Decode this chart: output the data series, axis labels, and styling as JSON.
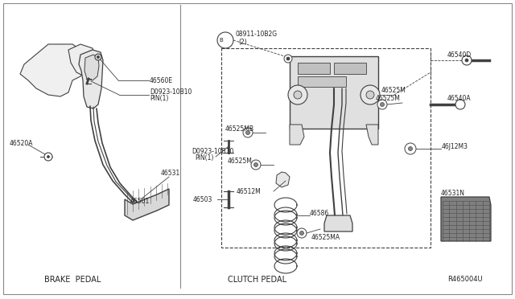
{
  "background_color": "#ffffff",
  "line_color": "#404040",
  "text_color": "#222222",
  "brake_label": "BRAKE  PEDAL",
  "clutch_label": "CLUTCH PEDAL",
  "ref_code": "R465004U"
}
